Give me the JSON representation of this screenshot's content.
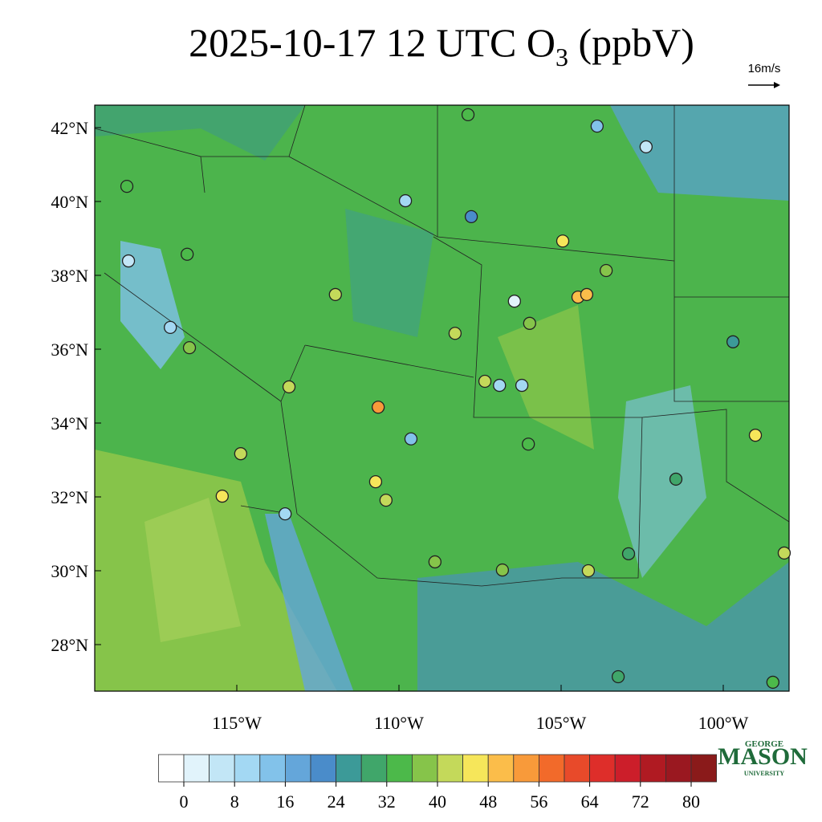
{
  "map": {
    "title": {
      "main": "2025-10-17 12 UTC O",
      "subscript": "3",
      "suffix": " (ppbV)"
    },
    "reference_vector": "16m/s",
    "lon_ticks": [
      {
        "value": -115,
        "label": "115°W"
      },
      {
        "value": -110,
        "label": "110°W"
      },
      {
        "value": -105,
        "label": "105°W"
      },
      {
        "value": -100,
        "label": "100°W"
      }
    ],
    "lat_ticks": [
      {
        "value": 42,
        "label": "42°N"
      },
      {
        "value": 40,
        "label": "40°N"
      },
      {
        "value": 38,
        "label": "38°N"
      },
      {
        "value": 36,
        "label": "36°N"
      },
      {
        "value": 34,
        "label": "34°N"
      },
      {
        "value": 32,
        "label": "32°N"
      },
      {
        "value": 30,
        "label": "30°N"
      },
      {
        "value": 28,
        "label": "28°N"
      }
    ],
    "colorbar": {
      "levels_step": 4,
      "ticks": [
        0,
        8,
        16,
        24,
        32,
        40,
        48,
        56,
        64,
        72,
        80
      ],
      "colors": [
        "#ffffff",
        "#e1f3fb",
        "#c2e6f6",
        "#a3d8f3",
        "#82c2ea",
        "#64a6da",
        "#4a8cca",
        "#3c9a98",
        "#40a66a",
        "#4cb94a",
        "#86c44a",
        "#c4d95a",
        "#f6e65a",
        "#fbbd4a",
        "#f89a3a",
        "#f26a2a",
        "#e84a2a",
        "#de2e2a",
        "#cc1e2a",
        "#b01a22",
        "#9a1820",
        "#8a1a1a"
      ]
    },
    "stations": [
      {
        "lon": -107.87,
        "lat": 42.35,
        "value": 34
      },
      {
        "lon": -104.95,
        "lat": 38.93,
        "value": 46
      },
      {
        "lon": -104.48,
        "lat": 37.41,
        "value": 50
      },
      {
        "lon": -104.21,
        "lat": 37.48,
        "value": 51
      },
      {
        "lon": -110.64,
        "lat": 34.43,
        "value": 52
      },
      {
        "lon": -99.01,
        "lat": 33.67,
        "value": 45
      },
      {
        "lon": -115.45,
        "lat": 32.02,
        "value": 46
      },
      {
        "lon": -110.72,
        "lat": 32.41,
        "value": 46
      },
      {
        "lon": -104.16,
        "lat": 30.0,
        "value": 42
      },
      {
        "lon": -102.38,
        "lat": 41.48,
        "value": 6
      },
      {
        "lon": -103.89,
        "lat": 42.04,
        "value": 14
      },
      {
        "lon": -118.34,
        "lat": 38.39,
        "value": 4
      },
      {
        "lon": -117.05,
        "lat": 36.59,
        "value": 10
      },
      {
        "lon": -113.51,
        "lat": 31.54,
        "value": 10
      },
      {
        "lon": -109.8,
        "lat": 40.02,
        "value": 10
      },
      {
        "lon": -106.44,
        "lat": 37.3,
        "value": 3
      },
      {
        "lon": -107.77,
        "lat": 39.59,
        "value": 20
      },
      {
        "lon": -99.7,
        "lat": 36.2,
        "value": 24
      },
      {
        "lon": -101.46,
        "lat": 32.48,
        "value": 28
      },
      {
        "lon": -102.92,
        "lat": 30.46,
        "value": 30
      },
      {
        "lon": -103.24,
        "lat": 27.13,
        "value": 30
      },
      {
        "lon": -116.53,
        "lat": 38.57,
        "value": 34
      },
      {
        "lon": -116.46,
        "lat": 36.04,
        "value": 36
      },
      {
        "lon": -111.96,
        "lat": 37.48,
        "value": 40
      },
      {
        "lon": -105.97,
        "lat": 36.7,
        "value": 36
      },
      {
        "lon": -107.35,
        "lat": 35.13,
        "value": 40
      },
      {
        "lon": -113.39,
        "lat": 34.98,
        "value": 42
      },
      {
        "lon": -114.88,
        "lat": 33.17,
        "value": 40
      },
      {
        "lon": -98.12,
        "lat": 30.48,
        "value": 42
      },
      {
        "lon": -106.81,
        "lat": 30.02,
        "value": 38
      },
      {
        "lon": -108.89,
        "lat": 30.24,
        "value": 36
      },
      {
        "lon": -98.47,
        "lat": 26.98,
        "value": 32
      },
      {
        "lon": -118.39,
        "lat": 40.41,
        "value": 34
      },
      {
        "lon": -110.4,
        "lat": 31.91,
        "value": 40
      },
      {
        "lon": -106.01,
        "lat": 33.43,
        "value": 32
      },
      {
        "lon": -103.61,
        "lat": 38.13,
        "value": 38
      },
      {
        "lon": -108.27,
        "lat": 36.43,
        "value": 42
      },
      {
        "lon": -106.21,
        "lat": 35.02,
        "value": 8
      },
      {
        "lon": -106.9,
        "lat": 35.02,
        "value": 8
      },
      {
        "lon": -109.63,
        "lat": 33.57,
        "value": 14
      }
    ],
    "logo": {
      "top": "GEORGE",
      "name": "MASON",
      "bottom": "UNIVERSITY"
    }
  }
}
